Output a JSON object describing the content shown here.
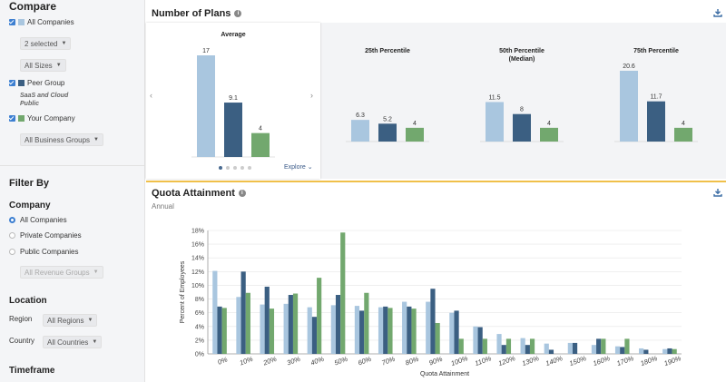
{
  "sidebar": {
    "compare_title": "Compare",
    "all_companies": "All Companies",
    "selected_dd": "2 selected",
    "sizes_dd": "All Sizes",
    "peer_group": "Peer Group",
    "peer_note_1": "SaaS and Cloud",
    "peer_note_2": "Public",
    "your_company": "Your Company",
    "business_groups_dd": "All Business Groups",
    "filter_title": "Filter By",
    "company_title": "Company",
    "radio_all": "All Companies",
    "radio_private": "Private Companies",
    "radio_public": "Public Companies",
    "revenue_dd": "All Revenue Groups",
    "location_title": "Location",
    "region_label": "Region",
    "region_dd": "All Regions",
    "country_label": "Country",
    "country_dd": "All Countries",
    "timeframe_title": "Timeframe"
  },
  "colors": {
    "all": "#a9c6df",
    "peer": "#3b5f82",
    "yours": "#72a86e"
  },
  "plans": {
    "title": "Number of Plans",
    "explore": "Explore",
    "average": {
      "title": "Average",
      "values": [
        17,
        9.1,
        4
      ],
      "labels": [
        "17",
        "9.1",
        "4"
      ]
    },
    "p25": {
      "title": "25th Percentile",
      "values": [
        6.3,
        5.2,
        4
      ],
      "labels": [
        "6.3",
        "5.2",
        "4"
      ]
    },
    "p50": {
      "title_1": "50th Percentile",
      "title_2": "(Median)",
      "values": [
        11.5,
        8,
        4
      ],
      "labels": [
        "11.5",
        "8",
        "4"
      ]
    },
    "p75": {
      "title": "75th Percentile",
      "values": [
        20.6,
        11.7,
        4
      ],
      "labels": [
        "20.6",
        "11.7",
        "4"
      ]
    }
  },
  "quota": {
    "title": "Quota Attainment",
    "subtitle": "Annual"
  },
  "chart_data": {
    "type": "bar",
    "title": "Quota Attainment",
    "xlabel": "Quota Attainment",
    "ylabel": "Percent of Employees",
    "ylim": [
      0,
      18
    ],
    "yticks": [
      "0%",
      "2%",
      "4%",
      "6%",
      "8%",
      "10%",
      "12%",
      "14%",
      "16%",
      "18%"
    ],
    "categories": [
      "0%",
      "10%",
      "20%",
      "30%",
      "40%",
      "50%",
      "60%",
      "70%",
      "80%",
      "90%",
      "100%",
      "110%",
      "120%",
      "130%",
      "140%",
      "150%",
      "160%",
      "170%",
      "180%",
      "190%"
    ],
    "series": [
      {
        "name": "All Companies",
        "values": [
          12.1,
          8.3,
          7.2,
          7.3,
          6.8,
          7.1,
          7.0,
          6.8,
          7.6,
          7.6,
          6.0,
          4.0,
          2.9,
          2.3,
          1.5,
          1.6,
          1.3,
          1.1,
          0.8,
          0.7
        ]
      },
      {
        "name": "Peer Group",
        "values": [
          6.9,
          12.0,
          9.8,
          8.6,
          5.4,
          8.6,
          6.3,
          6.9,
          6.9,
          9.5,
          6.3,
          3.9,
          1.3,
          1.3,
          0.6,
          1.6,
          2.2,
          1.0,
          0.6,
          0.8
        ]
      },
      {
        "name": "Your Company",
        "values": [
          6.7,
          8.9,
          6.6,
          8.8,
          11.1,
          17.7,
          8.9,
          6.7,
          6.6,
          4.5,
          2.2,
          2.2,
          2.2,
          2.2,
          0.0,
          0.0,
          2.2,
          2.2,
          0.0,
          0.7
        ]
      }
    ]
  }
}
